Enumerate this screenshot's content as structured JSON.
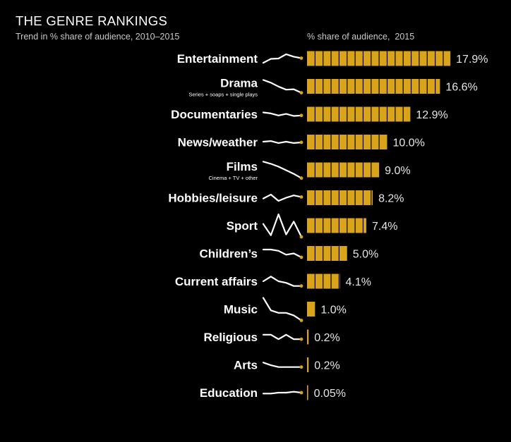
{
  "title": "THE GENRE RANKINGS",
  "subtitle": "Trend in % share of audience, 2010–2015",
  "axis_title": "% share of audience,  2015",
  "colors": {
    "background": "#000000",
    "bar": "#d9a31a",
    "segment_line": "#000000",
    "sparkline": "#ffffff",
    "dot": "#d9a31a",
    "text": "#ffffff",
    "value_text": "#e6e6e6"
  },
  "chart_data": {
    "type": "bar",
    "orientation": "horizontal",
    "title": "THE GENRE RANKINGS",
    "xlabel": "% share of audience,  2015",
    "segment_unit": 1,
    "categories": [
      "Entertainment",
      "Drama",
      "Documentaries",
      "News/weather",
      "Films",
      "Hobbies/leisure",
      "Sport",
      "Children’s",
      "Current affairs",
      "Music",
      "Religious",
      "Arts",
      "Education"
    ],
    "sublabels": [
      "",
      "Series + soaps + single plays",
      "",
      "",
      "Cinema + TV + other",
      "",
      "",
      "",
      "",
      "",
      "",
      "",
      ""
    ],
    "values": [
      17.9,
      16.6,
      12.9,
      10.0,
      9.0,
      8.2,
      7.4,
      5.0,
      4.1,
      1.0,
      0.2,
      0.2,
      0.05
    ],
    "value_labels": [
      "17.9%",
      "16.6%",
      "12.9%",
      "10.0%",
      "9.0%",
      "8.2%",
      "7.4%",
      "5.0%",
      "4.1%",
      "1.0%",
      "0.2%",
      "0.2%",
      "0.05%"
    ],
    "trend_years": [
      "2010",
      "2011",
      "2012",
      "2013",
      "2014",
      "2015"
    ],
    "trends": [
      [
        16.6,
        17.7,
        17.8,
        19.0,
        18.3,
        17.9
      ],
      [
        19.9,
        19.2,
        18.2,
        17.4,
        17.5,
        16.6
      ],
      [
        13.5,
        13.3,
        12.9,
        13.2,
        12.8,
        12.9
      ],
      [
        10.1,
        10.2,
        9.9,
        10.1,
        9.9,
        10.0
      ],
      [
        11.3,
        11.0,
        10.6,
        10.1,
        9.6,
        9.0
      ],
      [
        8.0,
        8.5,
        7.7,
        8.1,
        8.4,
        8.2
      ],
      [
        9.0,
        7.6,
        10.2,
        7.7,
        9.3,
        7.4
      ],
      [
        5.6,
        5.6,
        5.5,
        5.2,
        5.3,
        5.0
      ],
      [
        4.4,
        4.7,
        4.4,
        4.3,
        4.1,
        4.1
      ],
      [
        1.9,
        1.4,
        1.3,
        1.3,
        1.2,
        1.0
      ],
      [
        0.25,
        0.25,
        0.2,
        0.25,
        0.2,
        0.2
      ],
      [
        0.25,
        0.22,
        0.2,
        0.2,
        0.2,
        0.2
      ],
      [
        0.04,
        0.04,
        0.05,
        0.05,
        0.06,
        0.05
      ]
    ]
  }
}
